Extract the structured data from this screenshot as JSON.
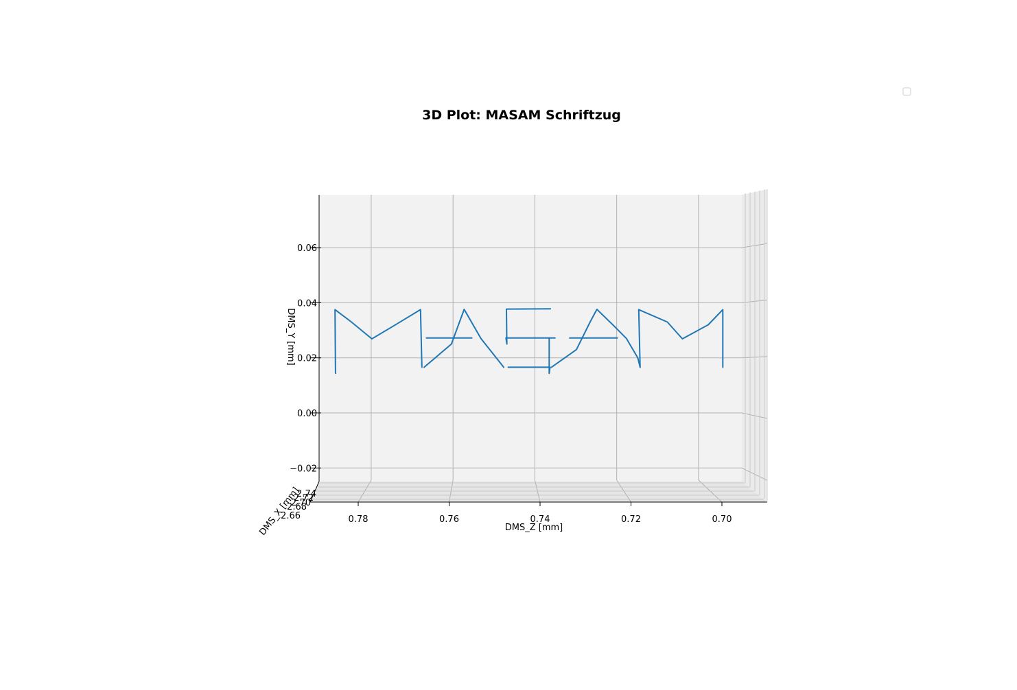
{
  "chart_data": {
    "type": "line",
    "projection": "3d",
    "view": "side view, looking along DMS_X axis",
    "title": "3D Plot: MASAM Schriftzug",
    "xlabel": "DMS_X [mm]",
    "ylabel": "DMS_Y [mm]",
    "zlabel": "DMS_Z [mm]",
    "y_ticks": [
      "−0.02",
      "0.00",
      "0.02",
      "0.04",
      "0.06"
    ],
    "z_ticks": [
      "0.78",
      "0.76",
      "0.74",
      "0.72",
      "0.70"
    ],
    "x_ticks": [
      "2.66",
      "2.68",
      "2.70",
      "2.72",
      "2.74"
    ],
    "grid": true,
    "legend": "top-right (empty)",
    "series_color": "#1f77b4",
    "pane_color": "#f2f2f2",
    "series": [
      {
        "name": "",
        "strokes": [
          {
            "letter": "M",
            "points": [
              [
                0.785,
                0.0144
              ],
              [
                0.7851,
                0.0375
              ],
              [
                0.7815,
                0.033
              ],
              [
                0.777,
                0.0269
              ],
              [
                0.772,
                0.0318
              ],
              [
                0.7663,
                0.0375
              ],
              [
                0.766,
                0.0166
              ]
            ]
          },
          {
            "letter": "A",
            "points": [
              [
                0.7655,
                0.0166
              ],
              [
                0.7595,
                0.025
              ],
              [
                0.7567,
                0.0376
              ],
              [
                0.753,
                0.027
              ],
              [
                0.748,
                0.0166
              ]
            ]
          },
          {
            "letter": "A-bar",
            "points": [
              [
                0.765,
                0.0272
              ],
              [
                0.755,
                0.0272
              ]
            ]
          },
          {
            "letter": "S",
            "points": [
              [
                0.7472,
                0.0377
              ],
              [
                0.7377,
                0.0378
              ]
            ]
          },
          {
            "letter": "S",
            "points": [
              [
                0.7474,
                0.0377
              ],
              [
                0.7473,
                0.025
              ],
              [
                0.7475,
                0.0272
              ],
              [
                0.7367,
                0.0272
              ]
            ]
          },
          {
            "letter": "S",
            "points": [
              [
                0.738,
                0.0272
              ],
              [
                0.738,
                0.0144
              ]
            ]
          },
          {
            "letter": "S",
            "points": [
              [
                0.738,
                0.0144
              ],
              [
                0.7378,
                0.0166
              ],
              [
                0.747,
                0.0166
              ]
            ]
          },
          {
            "letter": "A",
            "points": [
              [
                0.7375,
                0.0166
              ],
              [
                0.732,
                0.023
              ],
              [
                0.729,
                0.033
              ],
              [
                0.7275,
                0.0376
              ],
              [
                0.724,
                0.032
              ],
              [
                0.721,
                0.027
              ],
              [
                0.7185,
                0.02
              ],
              [
                0.718,
                0.0166
              ]
            ]
          },
          {
            "letter": "A-bar",
            "points": [
              [
                0.7335,
                0.0272
              ],
              [
                0.723,
                0.0272
              ]
            ]
          },
          {
            "letter": "M",
            "points": [
              [
                0.718,
                0.0166
              ],
              [
                0.7183,
                0.0375
              ],
              [
                0.712,
                0.033
              ],
              [
                0.7087,
                0.0269
              ],
              [
                0.703,
                0.032
              ],
              [
                0.6998,
                0.0375
              ],
              [
                0.6998,
                0.0166
              ]
            ]
          }
        ]
      }
    ]
  }
}
